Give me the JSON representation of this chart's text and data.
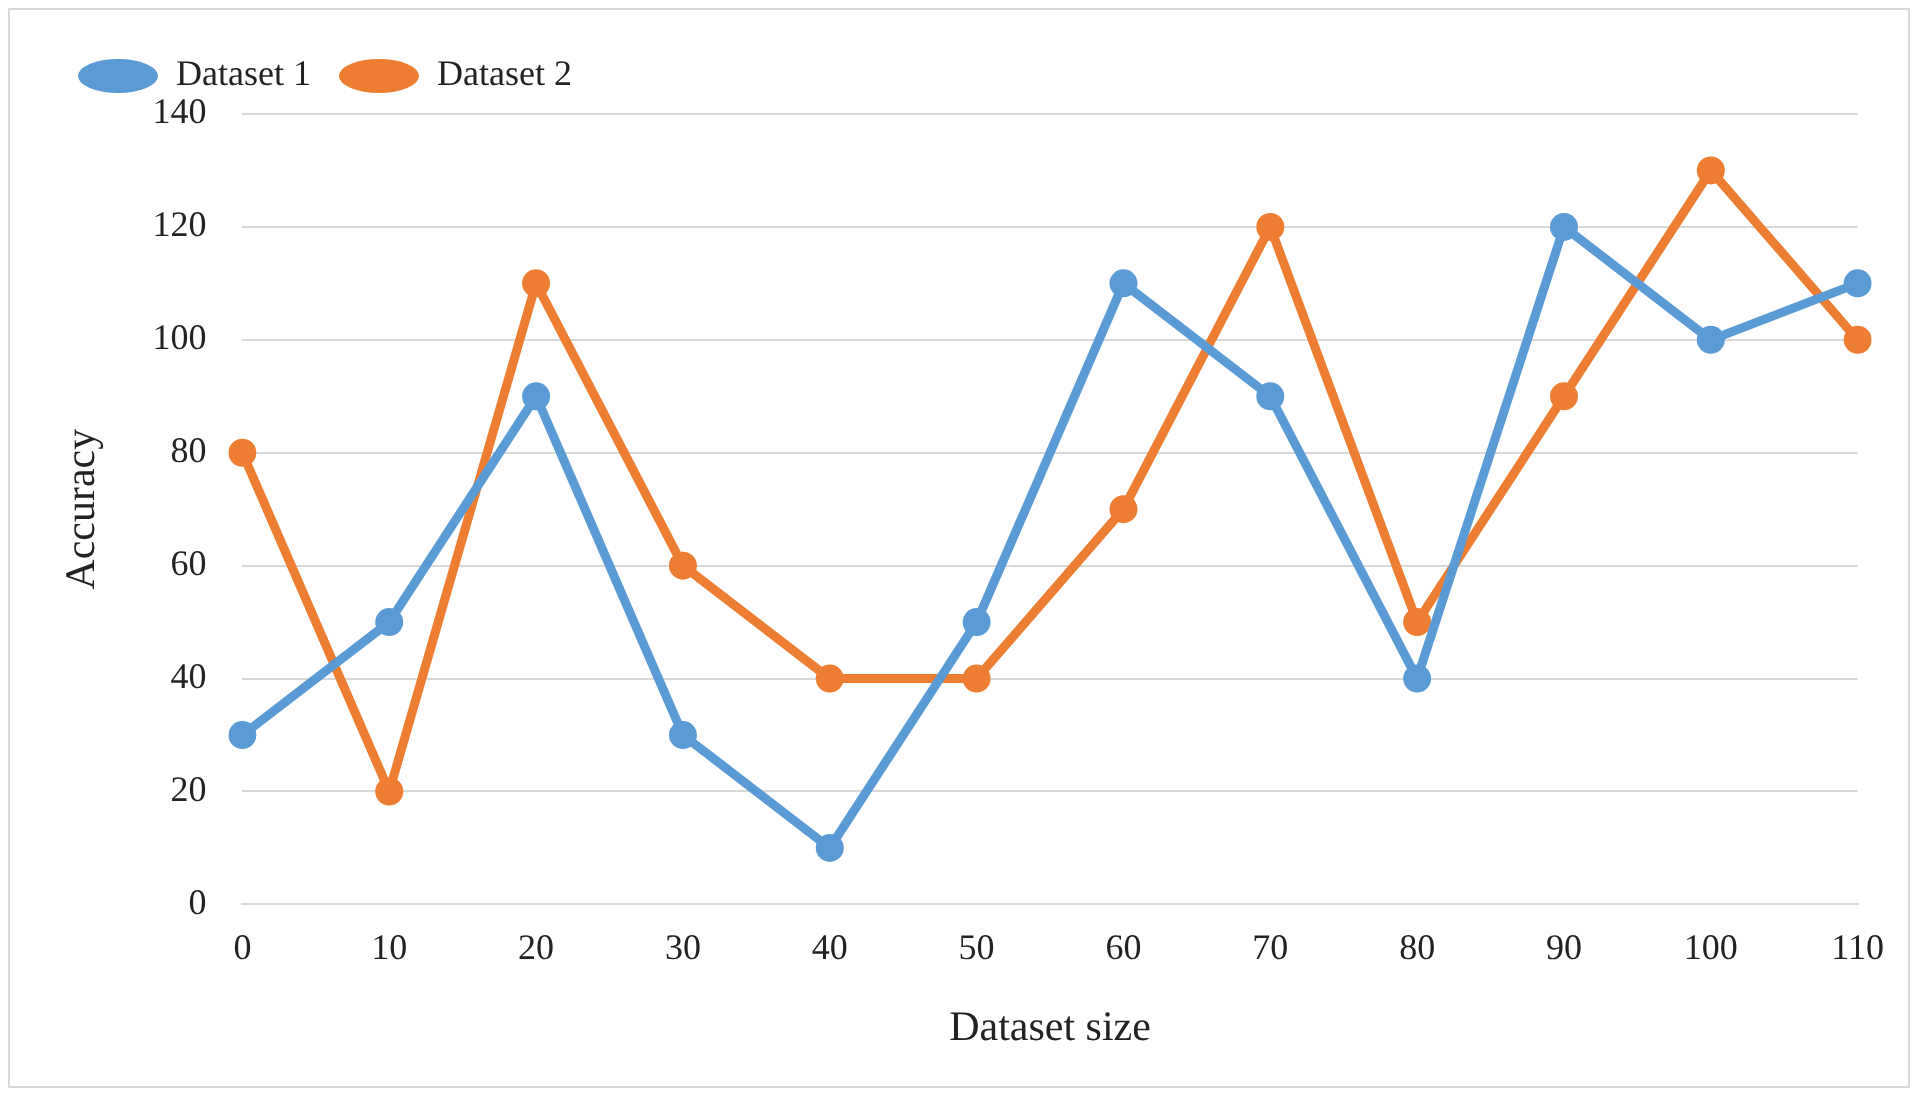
{
  "chart_data": {
    "type": "line",
    "xlabel": "Dataset size",
    "ylabel": "Accuracy",
    "categories": [
      "0",
      "10",
      "20",
      "30",
      "40",
      "50",
      "60",
      "70",
      "80",
      "90",
      "100",
      "110"
    ],
    "series": [
      {
        "name": "Dataset 1",
        "color": "#5b9bd5",
        "values": [
          30,
          50,
          90,
          30,
          10,
          50,
          110,
          90,
          40,
          120,
          100,
          110
        ]
      },
      {
        "name": "Dataset 2",
        "color": "#ed7d31",
        "values": [
          80,
          20,
          110,
          60,
          40,
          40,
          70,
          120,
          50,
          90,
          130,
          100
        ]
      }
    ],
    "ylim": [
      0,
      140
    ],
    "yticks": [
      0,
      20,
      40,
      60,
      80,
      100,
      120,
      140
    ],
    "grid": "y",
    "legend": "top left",
    "marker": "circle",
    "line_style": "solid"
  }
}
